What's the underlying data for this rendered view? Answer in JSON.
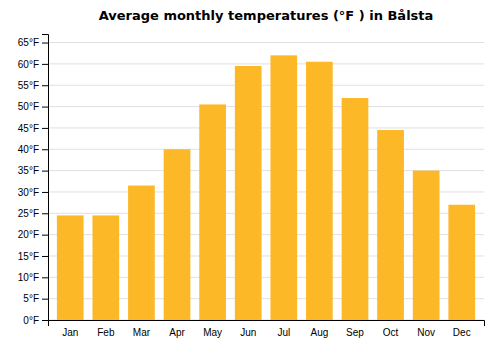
{
  "chart_data": {
    "type": "bar",
    "title": "Average monthly temperatures (°F ) in Bålsta",
    "categories": [
      "Jan",
      "Feb",
      "Mar",
      "Apr",
      "May",
      "Jun",
      "Jul",
      "Aug",
      "Sep",
      "Oct",
      "Nov",
      "Dec"
    ],
    "values": [
      24.5,
      24.5,
      31.5,
      40.0,
      50.5,
      59.5,
      62.0,
      60.5,
      52.0,
      44.5,
      35.0,
      27.0
    ],
    "color": "#FDB827",
    "ylim": [
      0,
      67
    ],
    "yticks": [
      {
        "value": 0,
        "label": "0°F"
      },
      {
        "value": 5,
        "label": "5°F"
      },
      {
        "value": 10,
        "label": "10°F"
      },
      {
        "value": 15,
        "label": "15°F"
      },
      {
        "value": 20,
        "label": "20°F"
      },
      {
        "value": 25,
        "label": "25°F"
      },
      {
        "value": 30,
        "label": "30°F"
      },
      {
        "value": 35,
        "label": "35°F"
      },
      {
        "value": 40,
        "label": "40°F"
      },
      {
        "value": 45,
        "label": "45°F"
      },
      {
        "value": 50,
        "label": "50°F"
      },
      {
        "value": 55,
        "label": "55°F"
      },
      {
        "value": 60,
        "label": "60°F"
      },
      {
        "value": 65,
        "label": "65°F"
      }
    ],
    "grid": true
  }
}
